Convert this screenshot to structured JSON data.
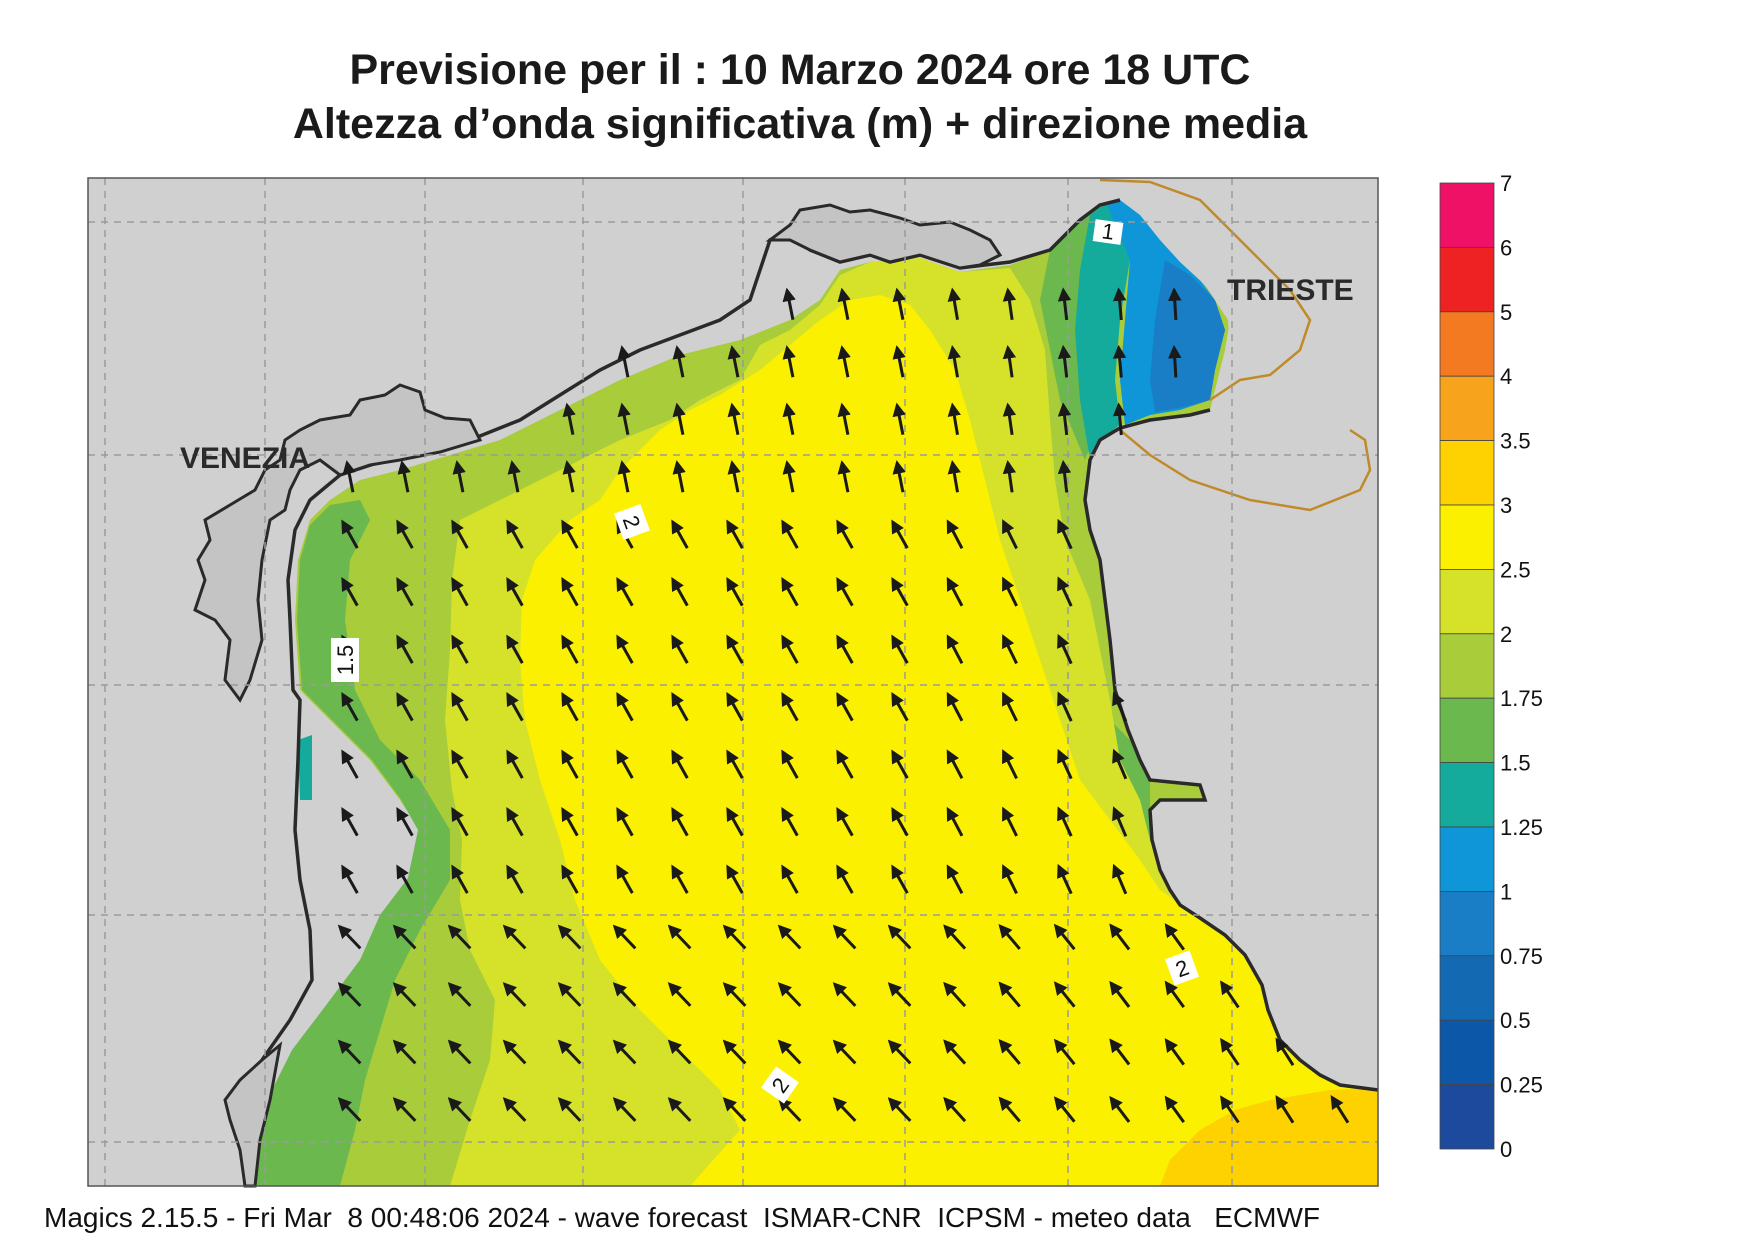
{
  "title": {
    "line1": "Previsione per il  :  10   Marzo   2024   ore 18 UTC",
    "line2": "Altezza d’onda significativa (m) + direzione media"
  },
  "map": {
    "region": "Northern Adriatic Sea",
    "cities": [
      {
        "name": "VENEZIA"
      },
      {
        "name": "TRIESTE"
      }
    ],
    "contour_labels": [
      "2",
      "1.5",
      "1",
      "2",
      "2"
    ],
    "arrow_direction": "north-west",
    "land_color": "#d0d0d0",
    "grid_color": "#9a9a9a",
    "border_color": "#c08a2a"
  },
  "legend": {
    "unit": "m",
    "ticks": [
      "7",
      "6",
      "5",
      "4",
      "3.5",
      "3",
      "2.5",
      "2",
      "1.75",
      "1.5",
      "1.25",
      "1",
      "0.75",
      "0.5",
      "0.25",
      "0"
    ],
    "colors": [
      "#ee1166",
      "#ee2222",
      "#f47a22",
      "#f7a31c",
      "#fdd200",
      "#fbf000",
      "#d6e22a",
      "#a8cc3a",
      "#6ab84e",
      "#14ab9c",
      "#0e96d8",
      "#1a7ec6",
      "#1469b3",
      "#0c57a7",
      "#1d4a9c"
    ]
  },
  "footer": "Magics 2.15.5 - Fri Mar  8 00:48:06 2024 - wave forecast  ISMAR-CNR  ICPSM - meteo data   ECMWF"
}
